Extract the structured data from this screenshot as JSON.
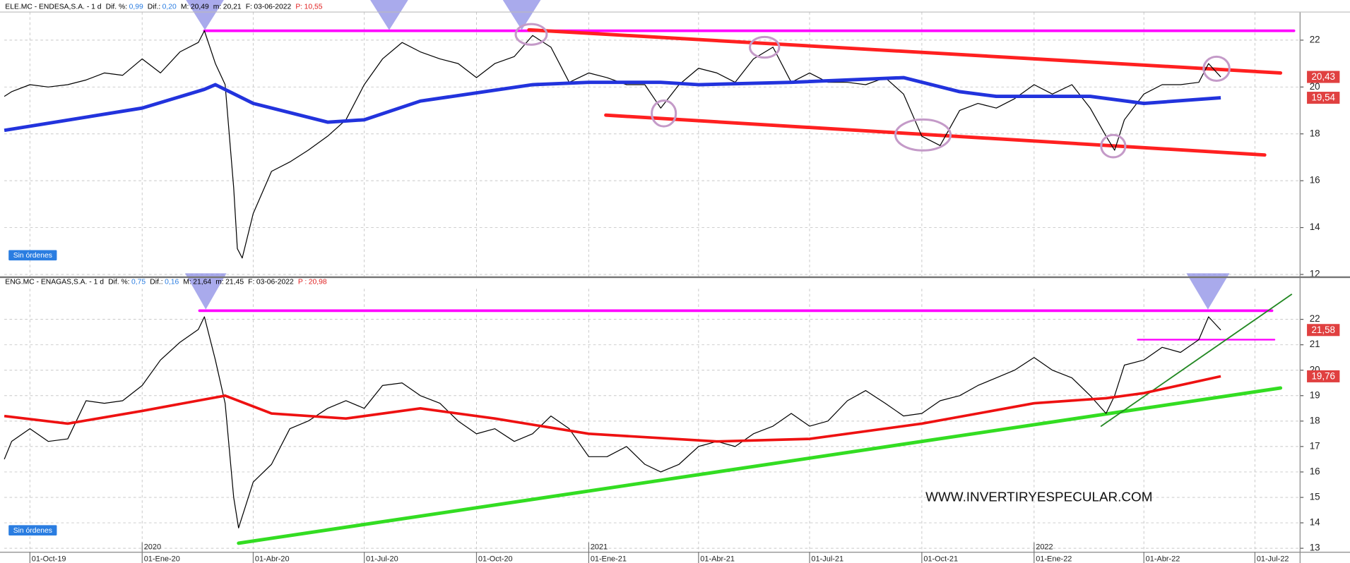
{
  "chart_data": [
    {
      "type": "line",
      "header": {
        "name": "ELE.MC - ENDESA,S.A. -  1 d",
        "fields": [
          {
            "label": "Dif. %:",
            "value": "0,99",
            "color": "#2a7de1"
          },
          {
            "label": "Dif.:",
            "value": "0,20",
            "color": "#2a7de1"
          },
          {
            "label": "M:",
            "value": "20,49",
            "color": "#000000"
          },
          {
            "label": "m:",
            "value": "20,21",
            "color": "#000000"
          },
          {
            "label": "F:",
            "value": "03-06-2022",
            "color": "#000000"
          },
          {
            "label": "P:",
            "value": "10,55",
            "color": "#e02020"
          }
        ]
      },
      "button": "Sin órdenes",
      "xlim": [
        "2019-09-10",
        "2022-08-07"
      ],
      "ylim": [
        11.9,
        23.2
      ],
      "yticks": [
        12,
        14,
        16,
        18,
        20,
        22
      ],
      "grid": true,
      "series": [
        {
          "color": "#000000",
          "width": 1,
          "x": [
            "2019-09-10",
            "2019-09-16",
            "2019-10-01",
            "2019-10-16",
            "2019-11-01",
            "2019-11-16",
            "2019-12-01",
            "2019-12-16",
            "2020-01-01",
            "2020-01-16",
            "2020-02-01",
            "2020-02-16",
            "2020-02-21",
            "2020-03-01",
            "2020-03-09",
            "2020-03-16",
            "2020-03-19",
            "2020-03-23",
            "2020-04-01",
            "2020-04-16",
            "2020-05-01",
            "2020-05-16",
            "2020-06-01",
            "2020-06-16",
            "2020-07-01",
            "2020-07-16",
            "2020-08-01",
            "2020-08-16",
            "2020-09-01",
            "2020-09-16",
            "2020-10-01",
            "2020-10-16",
            "2020-11-01",
            "2020-11-16",
            "2020-12-01",
            "2020-12-16",
            "2021-01-01",
            "2021-01-16",
            "2021-02-01",
            "2021-02-16",
            "2021-03-01",
            "2021-03-16",
            "2021-04-01",
            "2021-04-16",
            "2021-05-01",
            "2021-05-16",
            "2021-06-01",
            "2021-06-16",
            "2021-07-01",
            "2021-07-16",
            "2021-08-01",
            "2021-08-16",
            "2021-09-01",
            "2021-09-16",
            "2021-10-01",
            "2021-10-16",
            "2021-11-01",
            "2021-11-16",
            "2021-12-01",
            "2021-12-16",
            "2022-01-01",
            "2022-01-16",
            "2022-02-01",
            "2022-02-16",
            "2022-03-01",
            "2022-03-08",
            "2022-03-16",
            "2022-04-01",
            "2022-04-16",
            "2022-05-01",
            "2022-05-16",
            "2022-05-24",
            "2022-06-03"
          ],
          "values": [
            19.6,
            19.8,
            20.1,
            20.0,
            20.1,
            20.3,
            20.6,
            20.5,
            21.2,
            20.6,
            21.5,
            21.9,
            22.4,
            21.0,
            20.1,
            15.7,
            13.1,
            12.7,
            14.6,
            16.4,
            16.8,
            17.3,
            17.9,
            18.6,
            20.1,
            21.2,
            21.9,
            21.5,
            21.2,
            21.0,
            20.4,
            21.0,
            21.3,
            22.2,
            21.7,
            20.2,
            20.6,
            20.4,
            20.1,
            20.1,
            19.1,
            20.1,
            20.8,
            20.6,
            20.2,
            21.2,
            21.7,
            20.2,
            20.6,
            20.2,
            20.2,
            20.1,
            20.4,
            19.7,
            17.9,
            17.5,
            19.0,
            19.3,
            19.1,
            19.5,
            20.1,
            19.7,
            20.1,
            19.1,
            17.9,
            17.3,
            18.6,
            19.7,
            20.1,
            20.1,
            20.2,
            21.0,
            20.43
          ],
          "end_label": "20,43"
        },
        {
          "color": "#2233dd",
          "width": 4,
          "x": [
            "2019-09-10",
            "2020-01-01",
            "2020-02-21",
            "2020-03-01",
            "2020-04-01",
            "2020-06-01",
            "2020-07-01",
            "2020-08-16",
            "2020-11-16",
            "2021-01-01",
            "2021-03-01",
            "2021-04-01",
            "2021-06-16",
            "2021-09-16",
            "2021-11-01",
            "2021-12-01",
            "2022-02-16",
            "2022-04-01",
            "2022-06-03"
          ],
          "values": [
            18.15,
            19.1,
            19.9,
            20.1,
            19.3,
            18.5,
            18.6,
            19.4,
            20.1,
            20.2,
            20.2,
            20.1,
            20.2,
            20.4,
            19.8,
            19.6,
            19.6,
            19.3,
            19.54
          ],
          "end_label": "19,54"
        }
      ],
      "trendlines": [
        {
          "color": "#ff00ff",
          "width": 3,
          "x": [
            "2020-02-21",
            "2022-08-02"
          ],
          "values": [
            22.4,
            22.4
          ]
        },
        {
          "color": "#ff2020",
          "width": 4,
          "x": [
            "2020-11-13",
            "2022-07-22"
          ],
          "values": [
            22.44,
            20.6
          ]
        },
        {
          "color": "#ff2020",
          "width": 4,
          "x": [
            "2021-01-15",
            "2022-07-09"
          ],
          "values": [
            18.8,
            17.1
          ]
        }
      ]
    },
    {
      "type": "line",
      "header": {
        "name": "ENG.MC - ENAGAS,S.A. -  1 d",
        "fields": [
          {
            "label": "Dif. %:",
            "value": "0,75",
            "color": "#2a7de1"
          },
          {
            "label": "Dif.:",
            "value": "0,16",
            "color": "#2a7de1"
          },
          {
            "label": "M:",
            "value": "21,64",
            "color": "#000000"
          },
          {
            "label": "m:",
            "value": "21,45",
            "color": "#000000"
          },
          {
            "label": "F:",
            "value": "03-06-2022",
            "color": "#000000"
          },
          {
            "label": "P :",
            "value": "20,98",
            "color": "#e02020"
          }
        ]
      },
      "button": "Sin órdenes",
      "watermark": "WWW.INVERTIRYESPECULAR.COM",
      "xlim": [
        "2019-09-10",
        "2022-08-07"
      ],
      "xticks": [
        {
          "value": "2019-10-01",
          "label": "01-Oct-19"
        },
        {
          "value": "2020-01-01",
          "label": "01-Ene-20"
        },
        {
          "value": "2020-04-01",
          "label": "01-Abr-20"
        },
        {
          "value": "2020-07-01",
          "label": "01-Jul-20"
        },
        {
          "value": "2020-10-01",
          "label": "01-Oct-20"
        },
        {
          "value": "2021-01-01",
          "label": "01-Ene-21"
        },
        {
          "value": "2021-04-01",
          "label": "01-Abr-21"
        },
        {
          "value": "2021-07-01",
          "label": "01-Jul-21"
        },
        {
          "value": "2021-10-01",
          "label": "01-Oct-21"
        },
        {
          "value": "2022-01-01",
          "label": "01-Ene-22"
        },
        {
          "value": "2022-04-01",
          "label": "01-Abr-22"
        },
        {
          "value": "2022-07-01",
          "label": "01-Jul-22"
        }
      ],
      "xticks_year": [
        {
          "value": "2020-01-01",
          "label": "2020"
        },
        {
          "value": "2021-01-01",
          "label": "2021"
        },
        {
          "value": "2022-01-01",
          "label": "2022"
        }
      ],
      "ylim": [
        12.86,
        23.2
      ],
      "yticks": [
        13,
        14,
        15,
        16,
        17,
        18,
        19,
        20,
        21,
        22
      ],
      "grid": true,
      "series": [
        {
          "color": "#000000",
          "width": 1,
          "x": [
            "2019-09-10",
            "2019-09-16",
            "2019-10-01",
            "2019-10-16",
            "2019-11-01",
            "2019-11-16",
            "2019-12-01",
            "2019-12-16",
            "2020-01-01",
            "2020-01-16",
            "2020-02-01",
            "2020-02-16",
            "2020-02-21",
            "2020-03-01",
            "2020-03-09",
            "2020-03-16",
            "2020-03-20",
            "2020-04-01",
            "2020-04-16",
            "2020-05-01",
            "2020-05-16",
            "2020-06-01",
            "2020-06-16",
            "2020-07-01",
            "2020-07-16",
            "2020-08-01",
            "2020-08-16",
            "2020-09-01",
            "2020-09-16",
            "2020-10-01",
            "2020-10-16",
            "2020-11-01",
            "2020-11-16",
            "2020-12-01",
            "2020-12-16",
            "2021-01-01",
            "2021-01-16",
            "2021-02-01",
            "2021-02-16",
            "2021-03-01",
            "2021-03-16",
            "2021-04-01",
            "2021-04-16",
            "2021-05-01",
            "2021-05-16",
            "2021-06-01",
            "2021-06-16",
            "2021-07-01",
            "2021-07-16",
            "2021-08-01",
            "2021-08-16",
            "2021-09-01",
            "2021-09-16",
            "2021-10-01",
            "2021-10-16",
            "2021-11-01",
            "2021-11-16",
            "2021-12-01",
            "2021-12-16",
            "2022-01-01",
            "2022-01-16",
            "2022-02-01",
            "2022-02-16",
            "2022-03-01",
            "2022-03-08",
            "2022-03-16",
            "2022-04-01",
            "2022-04-16",
            "2022-05-01",
            "2022-05-16",
            "2022-05-24",
            "2022-06-03"
          ],
          "values": [
            16.5,
            17.2,
            17.7,
            17.2,
            17.3,
            18.8,
            18.7,
            18.8,
            19.4,
            20.4,
            21.1,
            21.6,
            22.1,
            20.4,
            18.7,
            15.0,
            13.8,
            15.6,
            16.3,
            17.7,
            18.0,
            18.5,
            18.8,
            18.5,
            19.4,
            19.5,
            19.0,
            18.7,
            18.0,
            17.5,
            17.7,
            17.2,
            17.5,
            18.2,
            17.7,
            16.6,
            16.6,
            17.0,
            16.3,
            16.0,
            16.3,
            17.0,
            17.2,
            17.0,
            17.5,
            17.8,
            18.3,
            17.8,
            18.0,
            18.8,
            19.2,
            18.7,
            18.2,
            18.3,
            18.8,
            19.0,
            19.4,
            19.7,
            20.0,
            20.5,
            20.0,
            19.7,
            19.0,
            18.3,
            19.0,
            20.2,
            20.4,
            20.9,
            20.7,
            21.2,
            22.1,
            21.58
          ],
          "end_label": "21,58"
        },
        {
          "color": "#ee1111",
          "width": 3,
          "x": [
            "2019-09-10",
            "2019-11-01",
            "2020-01-01",
            "2020-03-09",
            "2020-04-16",
            "2020-06-16",
            "2020-08-16",
            "2020-10-16",
            "2021-01-01",
            "2021-04-16",
            "2021-07-01",
            "2021-10-01",
            "2022-01-01",
            "2022-03-01",
            "2022-04-01",
            "2022-06-03"
          ],
          "values": [
            18.2,
            17.9,
            18.4,
            19.0,
            18.3,
            18.1,
            18.5,
            18.1,
            17.5,
            17.2,
            17.3,
            17.9,
            18.7,
            18.9,
            19.1,
            19.76
          ],
          "end_label": "19,76"
        }
      ],
      "trendlines": [
        {
          "color": "#ff00ff",
          "width": 3,
          "x": [
            "2020-02-17",
            "2022-07-15"
          ],
          "values": [
            22.34,
            22.34
          ]
        },
        {
          "color": "#ff00ff",
          "width": 2,
          "x": [
            "2022-03-27",
            "2022-07-17"
          ],
          "values": [
            21.2,
            21.2
          ]
        },
        {
          "color": "#33dd22",
          "width": 4,
          "x": [
            "2020-03-20",
            "2022-07-22"
          ],
          "values": [
            13.2,
            19.3
          ]
        },
        {
          "color": "#228822",
          "width": 1.5,
          "x": [
            "2022-02-25",
            "2022-07-31"
          ],
          "values": [
            17.8,
            22.98
          ]
        }
      ]
    }
  ]
}
